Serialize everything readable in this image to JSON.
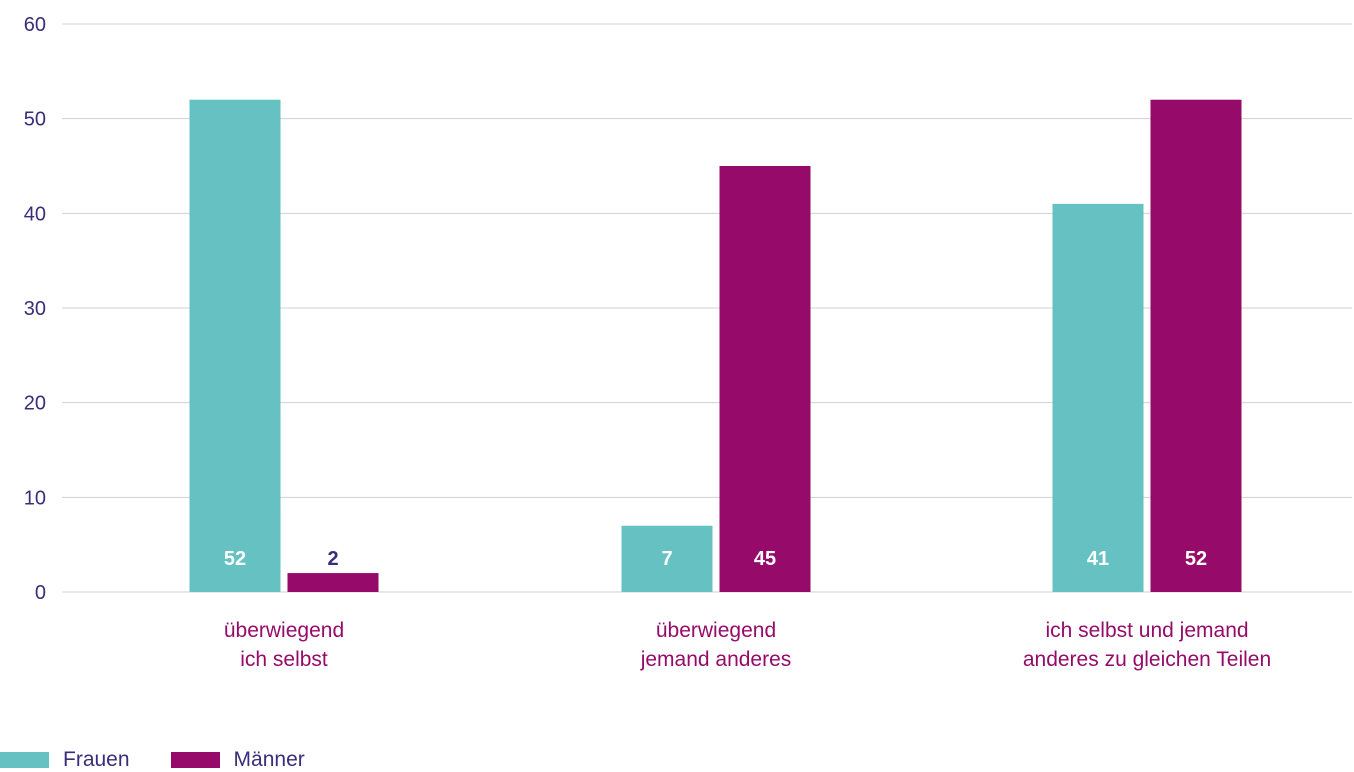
{
  "chart_data": {
    "type": "bar",
    "categories": [
      [
        "überwiegend",
        "ich selbst"
      ],
      [
        "überwiegend",
        "jemand anderes"
      ],
      [
        "ich selbst und jemand",
        "anderes zu gleichen Teilen"
      ]
    ],
    "series": [
      {
        "name": "Frauen",
        "values": [
          52,
          7,
          41
        ],
        "color": "#66c2c2",
        "value_label_color": "#ffffff"
      },
      {
        "name": "Männer",
        "values": [
          2,
          45,
          52
        ],
        "color": "#960b69",
        "value_label_color": "#ffffff"
      }
    ],
    "value_labels": [
      [
        "52",
        "7",
        "41"
      ],
      [
        "2",
        "45",
        "52"
      ]
    ],
    "small_value_label_color": "#3a2d7a",
    "ylim": [
      0,
      60
    ],
    "yticks": [
      0,
      10,
      20,
      30,
      40,
      50,
      60
    ],
    "grid": true,
    "legend_position": "bottom-left",
    "axis_text_color": "#3a2d7a",
    "category_text_color": "#960b69",
    "gridline_color": "#d0d0d0"
  }
}
